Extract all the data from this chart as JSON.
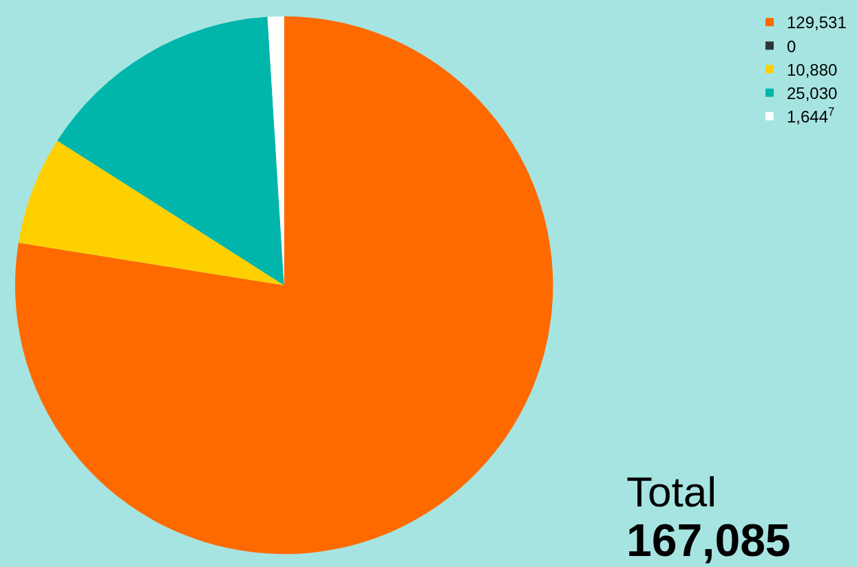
{
  "chart_data": {
    "type": "pie",
    "categories": [
      "129,531",
      "0",
      "10,880",
      "25,030",
      "1,644$^{7}$"
    ],
    "values": [
      129531,
      0,
      10880,
      25030,
      1644
    ],
    "colors": [
      "#ff6a00",
      "#333333",
      "#ffd000",
      "#00b5aa",
      "#ffffff"
    ],
    "legend": "top right",
    "annotations": [
      "Total",
      "167,085"
    ]
  }
}
